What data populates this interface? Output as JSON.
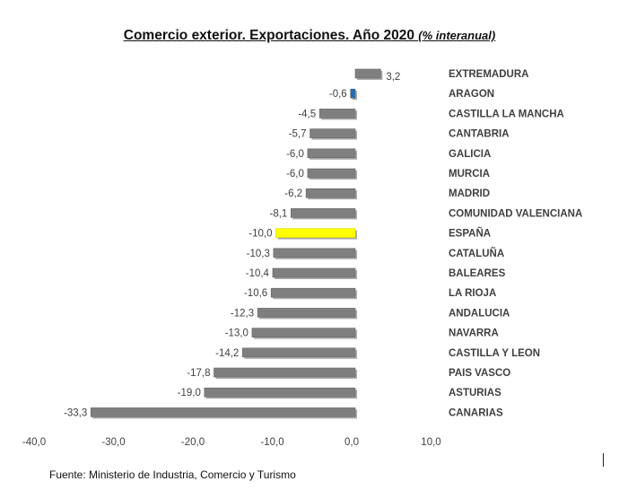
{
  "chart_data": {
    "type": "bar",
    "orientation": "horizontal",
    "title": "Comercio exterior. Exportaciones. Año 2020",
    "subtitle": "(% interanual)",
    "categories": [
      "EXTREMADURA",
      "ARAGON",
      "CASTILLA LA MANCHA",
      "CANTABRIA",
      "GALICIA",
      "MURCIA",
      "MADRID",
      "COMUNIDAD VALENCIANA",
      "ESPAÑA",
      "CATALUÑA",
      "BALEARES",
      "LA RIOJA",
      "ANDALUCIA",
      "NAVARRA",
      "CASTILLA Y LEON",
      "PAIS VASCO",
      "ASTURIAS",
      "CANARIAS"
    ],
    "values": [
      3.2,
      -0.6,
      -4.5,
      -5.7,
      -6.0,
      -6.0,
      -6.2,
      -8.1,
      -10.0,
      -10.3,
      -10.4,
      -10.6,
      -12.3,
      -13.0,
      -14.2,
      -17.8,
      -19.0,
      -33.3
    ],
    "value_labels": [
      "3,2",
      "-0,6",
      "-4,5",
      "-5,7",
      "-6,0",
      "-6,0",
      "-6,2",
      "-8,1",
      "-10,0",
      "-10,3",
      "-10,4",
      "-10,6",
      "-12,3",
      "-13,0",
      "-14,2",
      "-17,8",
      "-19,0",
      "-33,3"
    ],
    "xlim": [
      -40,
      10
    ],
    "x_ticks": [
      -40,
      -30,
      -20,
      -10,
      0,
      10
    ],
    "x_tick_labels": [
      "-40,0",
      "-30,0",
      "-20,0",
      "-10,0",
      "0,0",
      "10,0"
    ],
    "grid": false,
    "legend": "none",
    "colors": {
      "default": "#7f7f7f",
      "ARAGON": "#1f6fb5",
      "ESPAÑA": "#ffff00"
    }
  },
  "source": "Fuente: Ministerio de Industria, Comercio y Turismo"
}
